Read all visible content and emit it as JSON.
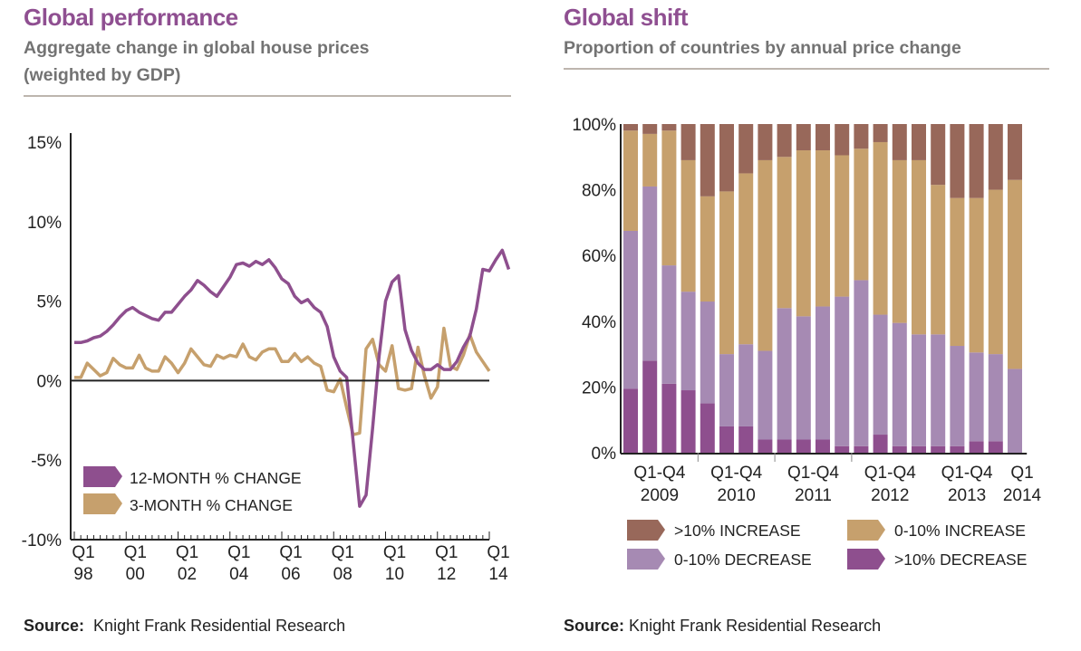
{
  "left": {
    "title": "Global performance",
    "subtitle_line1": "Aggregate change in global house prices",
    "subtitle_line2": "(weighted by GDP)",
    "source_label": "Source:",
    "source_text": "Knight Frank Residential Research"
  },
  "right": {
    "title": "Global shift",
    "subtitle_line1": "Proportion of countries by annual price change",
    "source_label": "Source:",
    "source_text": "Knight Frank Residential Research"
  },
  "colors": {
    "purple_dark": "#8e4f8e",
    "purple_light": "#a68ab3",
    "tan": "#c6a06d",
    "brown": "#98685a",
    "title": "#8f4f91",
    "axis": "#222222"
  },
  "chart_data": [
    {
      "type": "line",
      "title": "Global performance",
      "subtitle": "Aggregate change in global house prices (weighted by GDP)",
      "xlabel": "",
      "ylabel": "",
      "ylim": [
        -10,
        15
      ],
      "yticks": [
        -10,
        -5,
        0,
        5,
        10,
        15
      ],
      "ytick_labels": [
        "-10%",
        "-5%",
        "0%",
        "5%",
        "10%",
        "15%"
      ],
      "xtick_labels": [
        [
          "Q1",
          "98"
        ],
        [
          "Q1",
          "00"
        ],
        [
          "Q1",
          "02"
        ],
        [
          "Q1",
          "04"
        ],
        [
          "Q1",
          "06"
        ],
        [
          "Q1",
          "08"
        ],
        [
          "Q1",
          "10"
        ],
        [
          "Q1",
          "12"
        ],
        [
          "Q1",
          "14"
        ]
      ],
      "x_start": "Q1 1998",
      "x_end": "Q1 2014",
      "legend": {
        "placement": "bottom-left",
        "entries": [
          "12-MONTH % CHANGE",
          "3-MONTH % CHANGE"
        ]
      },
      "grid": false,
      "series": [
        {
          "name": "12-MONTH % CHANGE",
          "color": "#8e4f8e",
          "values": [
            2.4,
            2.4,
            2.5,
            2.7,
            2.8,
            3.1,
            3.5,
            4.0,
            4.4,
            4.6,
            4.3,
            4.1,
            3.9,
            3.8,
            4.3,
            4.3,
            4.8,
            5.3,
            5.7,
            6.3,
            6.0,
            5.6,
            5.3,
            5.9,
            6.5,
            7.3,
            7.4,
            7.2,
            7.5,
            7.3,
            7.6,
            7.1,
            6.4,
            6.1,
            5.3,
            4.9,
            5.1,
            4.6,
            4.3,
            3.4,
            1.5,
            0.6,
            0.2,
            -3.8,
            -7.9,
            -7.2,
            -3.0,
            1.5,
            5.0,
            6.2,
            6.6,
            3.2,
            1.9,
            1.1,
            0.7,
            0.7,
            1.0,
            0.7,
            0.7,
            1.2,
            2.1,
            2.8,
            4.5,
            7.0,
            6.9,
            7.6,
            8.2,
            7.0
          ],
          "note": "Quarterly values from Q1 1998 onwards, estimated from the plot"
        },
        {
          "name": "3-MONTH % CHANGE",
          "color": "#c6a06d",
          "values": [
            0.2,
            0.2,
            1.1,
            0.7,
            0.3,
            0.5,
            1.4,
            1.0,
            0.8,
            0.8,
            1.6,
            0.8,
            0.6,
            0.6,
            1.5,
            1.1,
            0.5,
            1.1,
            2.0,
            1.5,
            1.0,
            0.9,
            1.6,
            1.4,
            1.6,
            1.5,
            2.3,
            1.5,
            1.3,
            1.8,
            2.0,
            2.0,
            1.2,
            1.2,
            1.7,
            1.2,
            1.5,
            1.1,
            0.9,
            -0.6,
            -0.7,
            0.1,
            -1.7,
            -3.4,
            -3.3,
            2.0,
            2.6,
            1.0,
            0.6,
            2.2,
            -0.5,
            -0.6,
            -0.5,
            2.1,
            0.3,
            -1.1,
            -0.4,
            3.3,
            0.9,
            0.7,
            1.6,
            2.9,
            1.8,
            1.2,
            0.6
          ],
          "note": "Quarterly values, estimated from the plot"
        }
      ]
    },
    {
      "type": "bar",
      "stacked": true,
      "percent": true,
      "title": "Global shift",
      "subtitle": "Proportion of countries by annual price change",
      "ylim": [
        0,
        100
      ],
      "yticks": [
        0,
        20,
        40,
        60,
        80,
        100
      ],
      "ytick_labels": [
        "0%",
        "20%",
        "40%",
        "60%",
        "80%",
        "100%"
      ],
      "categories": [
        "Q1 2009",
        "Q2 2009",
        "Q3 2009",
        "Q4 2009",
        "Q1 2010",
        "Q2 2010",
        "Q3 2010",
        "Q4 2010",
        "Q1 2011",
        "Q2 2011",
        "Q3 2011",
        "Q4 2011",
        "Q1 2012",
        "Q2 2012",
        "Q3 2012",
        "Q4 2012",
        "Q1 2013",
        "Q2 2013",
        "Q3 2013",
        "Q4 2013",
        "Q1 2014"
      ],
      "group_labels": [
        [
          "Q1-Q4",
          "2009"
        ],
        [
          "Q1-Q4",
          "2010"
        ],
        [
          "Q1-Q4",
          "2011"
        ],
        [
          "Q1-Q4",
          "2012"
        ],
        [
          "Q1-Q4",
          "2013"
        ],
        [
          "Q1",
          "2014"
        ]
      ],
      "legend": {
        "placement": "bottom",
        "entries": [
          ">10% INCREASE",
          "0-10% INCREASE",
          "0-10% DECREASE",
          ">10% DECREASE"
        ]
      },
      "grid": false,
      "series": [
        {
          "name": ">10% DECREASE",
          "color": "#8e4f8e",
          "values": [
            19.5,
            28,
            21,
            19,
            15,
            8,
            8,
            4,
            4,
            4,
            4,
            2,
            2,
            5.5,
            2,
            2,
            2,
            2,
            3.5,
            3.5,
            0
          ]
        },
        {
          "name": "0-10% DECREASE",
          "color": "#a68ab3",
          "values": [
            48,
            53,
            36,
            30,
            31,
            22,
            25,
            27,
            40,
            37.5,
            40.5,
            45.5,
            50.5,
            36.5,
            37.5,
            34,
            34,
            30.5,
            27,
            26.5,
            25.5
          ]
        },
        {
          "name": "0-10% INCREASE",
          "color": "#c6a06d",
          "values": [
            30.5,
            16,
            41,
            40,
            32,
            49.5,
            52,
            58,
            46,
            50.5,
            47.5,
            43,
            40,
            52.5,
            49.5,
            53,
            45.5,
            45,
            47,
            50,
            57.5
          ]
        },
        {
          "name": ">10% INCREASE",
          "color": "#98685a",
          "values": [
            2,
            3,
            2,
            11,
            22,
            20.5,
            15,
            11,
            10,
            8,
            8,
            9.5,
            7.5,
            5.5,
            11,
            11,
            18.5,
            22.5,
            22.5,
            20,
            17
          ]
        }
      ]
    }
  ]
}
